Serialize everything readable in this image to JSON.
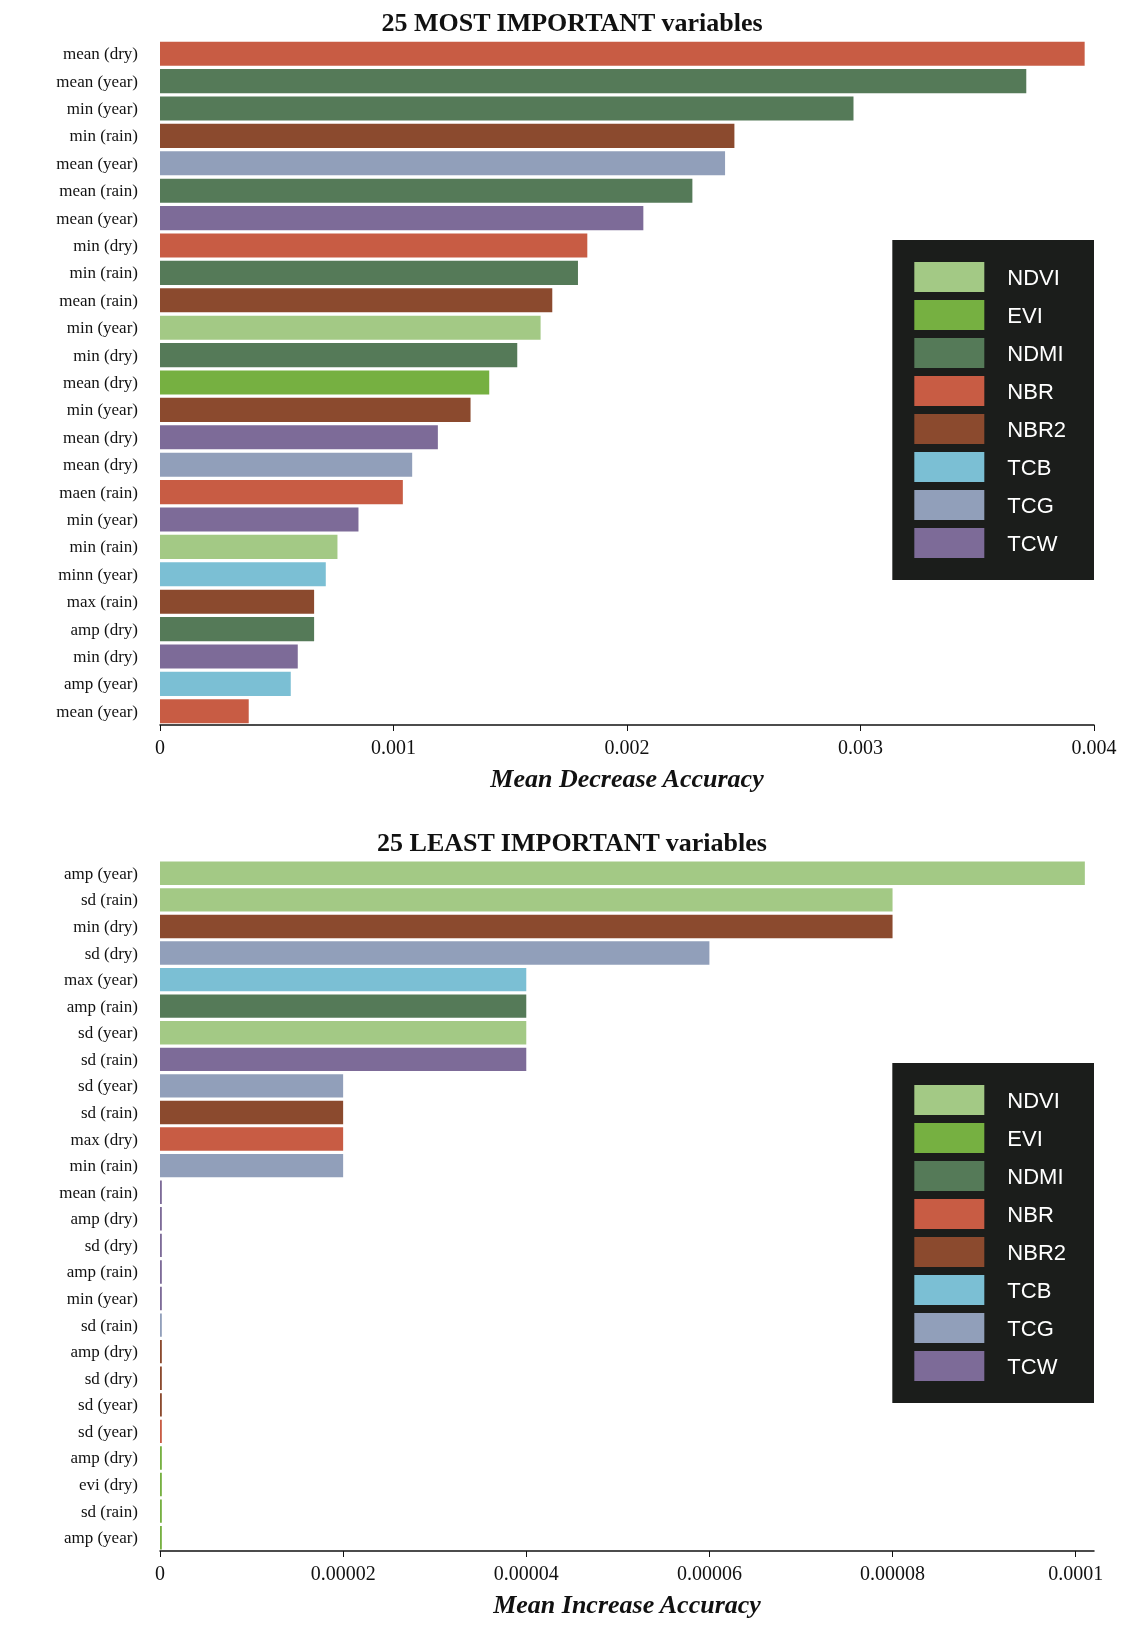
{
  "chart_data": [
    {
      "type": "bar",
      "title": "25 MOST IMPORTANT variables",
      "xlabel": "Mean Decrease Accuracy",
      "orientation": "horizontal",
      "stacked": true,
      "legend": "right",
      "grid": false,
      "categories": [
        "mean (dry)",
        "mean (year)",
        "min (year)",
        "min (rain)",
        "mean (year)",
        "mean (rain)",
        "mean (year)",
        "min (dry)",
        "min (rain)",
        "mean (rain)",
        "min (year)",
        "min (dry)",
        "mean (dry)",
        "min (year)",
        "mean (dry)",
        "mean (dry)",
        "maen (rain)",
        "min (year)",
        "min (rain)",
        "minn (year)",
        "max (rain)",
        "amp (dry)",
        "min (dry)",
        "amp (year)",
        "mean (year)"
      ],
      "xlim": [
        0,
        0.004
      ],
      "xticks": [
        0,
        0.001,
        0.002,
        0.003,
        0.004
      ],
      "series": [
        {
          "name": "NDVI",
          "color": "#a3c985",
          "values": [
            null,
            null,
            null,
            null,
            null,
            null,
            null,
            null,
            null,
            null,
            0.00163,
            null,
            null,
            null,
            null,
            null,
            null,
            null,
            0.00076,
            null,
            null,
            null,
            null,
            null,
            null
          ]
        },
        {
          "name": "EVI",
          "color": "#76b041",
          "values": [
            null,
            null,
            null,
            null,
            null,
            null,
            null,
            null,
            null,
            null,
            null,
            null,
            0.00141,
            null,
            null,
            null,
            null,
            null,
            null,
            null,
            null,
            null,
            null,
            null,
            null
          ]
        },
        {
          "name": "NDMI",
          "color": "#557a58",
          "values": [
            null,
            0.00371,
            0.00297,
            null,
            null,
            0.00228,
            null,
            null,
            0.00179,
            null,
            null,
            0.00153,
            null,
            null,
            null,
            null,
            null,
            null,
            null,
            null,
            null,
            0.00066,
            null,
            null,
            null
          ]
        },
        {
          "name": "NBR",
          "color": "#c85c44",
          "values": [
            0.00396,
            null,
            null,
            null,
            null,
            null,
            null,
            0.00183,
            null,
            null,
            null,
            null,
            null,
            null,
            null,
            null,
            0.00104,
            null,
            null,
            null,
            null,
            null,
            null,
            null,
            0.00038
          ]
        },
        {
          "name": "NBR2",
          "color": "#8b4a2e",
          "values": [
            null,
            null,
            null,
            0.00246,
            null,
            null,
            null,
            null,
            null,
            0.00168,
            null,
            null,
            null,
            0.00133,
            null,
            null,
            null,
            null,
            null,
            null,
            0.00066,
            null,
            null,
            null,
            null
          ]
        },
        {
          "name": "TCB",
          "color": "#7bbfd4",
          "values": [
            null,
            null,
            null,
            null,
            null,
            null,
            null,
            null,
            null,
            null,
            null,
            null,
            null,
            null,
            null,
            null,
            null,
            null,
            null,
            0.00071,
            null,
            null,
            null,
            0.00056,
            null
          ]
        },
        {
          "name": "TCG",
          "color": "#919fba",
          "values": [
            null,
            null,
            null,
            null,
            0.00242,
            null,
            null,
            null,
            null,
            null,
            null,
            null,
            null,
            null,
            null,
            0.00108,
            null,
            null,
            null,
            null,
            null,
            null,
            null,
            null,
            null
          ]
        },
        {
          "name": "TCW",
          "color": "#7d6b98",
          "values": [
            null,
            null,
            null,
            null,
            null,
            null,
            0.00207,
            null,
            null,
            null,
            null,
            null,
            null,
            null,
            0.00119,
            null,
            null,
            0.00085,
            null,
            null,
            null,
            null,
            0.00059,
            null,
            null
          ]
        }
      ]
    },
    {
      "type": "bar",
      "title": "25 LEAST IMPORTANT variables",
      "xlabel": "Mean Increase Accuracy",
      "orientation": "horizontal",
      "stacked": true,
      "legend": "right",
      "grid": false,
      "categories": [
        "amp (year)",
        "sd (rain)",
        "min (dry)",
        "sd (dry)",
        "max (year)",
        "amp (rain)",
        "sd (year)",
        "sd (rain)",
        "sd (year)",
        "sd (rain)",
        "max (dry)",
        "min (rain)",
        "mean (rain)",
        "amp (dry)",
        "sd (dry)",
        "amp (rain)",
        "min (year)",
        "sd (rain)",
        "amp (dry)",
        "sd (dry)",
        "sd (year)",
        "sd (year)",
        "amp (dry)",
        "evi (dry)",
        "sd (rain)",
        "amp (year)"
      ],
      "xlim": [
        0,
        0.000102
      ],
      "xticks": [
        0,
        {
          "value": 2e-05,
          "label": "0.00002"
        },
        {
          "value": 4e-05,
          "label": "0.00004"
        },
        {
          "value": 6e-05,
          "label": "0.00006"
        },
        {
          "value": 8e-05,
          "label": "0.00008"
        },
        {
          "value": 0.0001,
          "label": "0.0001"
        }
      ],
      "series": [
        {
          "name": "NDVI",
          "color": "#a3c985",
          "values": [
            0.000101,
            8e-05,
            null,
            null,
            null,
            null,
            4e-05,
            null,
            null,
            null,
            null,
            null,
            null,
            null,
            null,
            null,
            null,
            null,
            null,
            null,
            null,
            null,
            null,
            null,
            null,
            null
          ]
        },
        {
          "name": "EVI",
          "color": "#76b041",
          "values": [
            null,
            null,
            null,
            null,
            null,
            null,
            null,
            null,
            null,
            null,
            null,
            null,
            null,
            null,
            null,
            null,
            null,
            null,
            null,
            null,
            null,
            null,
            2e-07,
            2e-07,
            2e-07,
            2e-07
          ]
        },
        {
          "name": "NDMI",
          "color": "#557a58",
          "values": [
            null,
            null,
            null,
            null,
            null,
            4e-05,
            null,
            null,
            null,
            null,
            null,
            null,
            null,
            null,
            null,
            null,
            null,
            null,
            null,
            null,
            null,
            null,
            null,
            null,
            null,
            null
          ]
        },
        {
          "name": "NBR",
          "color": "#c85c44",
          "values": [
            null,
            null,
            null,
            null,
            null,
            null,
            null,
            null,
            null,
            null,
            2e-05,
            null,
            null,
            null,
            null,
            null,
            null,
            null,
            null,
            null,
            null,
            2e-07,
            null,
            null,
            null,
            null
          ]
        },
        {
          "name": "NBR2",
          "color": "#8b4a2e",
          "values": [
            null,
            null,
            8e-05,
            null,
            null,
            null,
            null,
            null,
            null,
            2e-05,
            null,
            null,
            null,
            null,
            null,
            null,
            null,
            null,
            2e-07,
            2e-07,
            2e-07,
            null,
            null,
            null,
            null,
            null
          ]
        },
        {
          "name": "TCB",
          "color": "#7bbfd4",
          "values": [
            null,
            null,
            null,
            null,
            4e-05,
            null,
            null,
            null,
            null,
            null,
            null,
            null,
            null,
            null,
            null,
            null,
            null,
            null,
            null,
            null,
            null,
            null,
            null,
            null,
            null,
            null
          ]
        },
        {
          "name": "TCG",
          "color": "#919fba",
          "values": [
            null,
            null,
            null,
            6e-05,
            null,
            null,
            null,
            null,
            2e-05,
            null,
            null,
            2e-05,
            null,
            null,
            null,
            null,
            null,
            2e-07,
            null,
            null,
            null,
            null,
            null,
            null,
            null,
            null
          ]
        },
        {
          "name": "TCW",
          "color": "#7d6b98",
          "values": [
            null,
            null,
            null,
            null,
            null,
            null,
            null,
            4e-05,
            null,
            null,
            null,
            null,
            2e-07,
            2e-07,
            2e-07,
            2e-07,
            2e-07,
            null,
            null,
            null,
            null,
            null,
            null,
            null,
            null,
            null
          ]
        }
      ]
    }
  ]
}
